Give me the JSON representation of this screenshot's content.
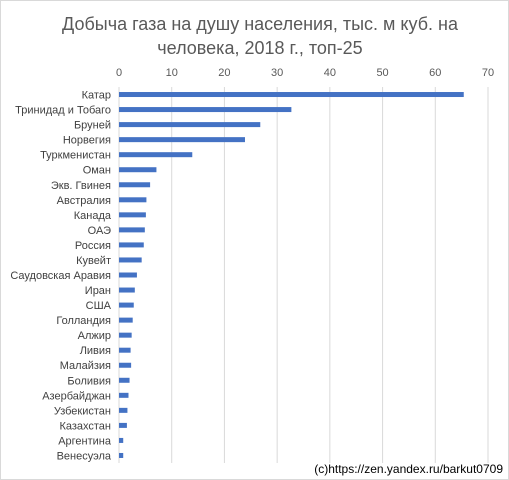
{
  "chart_data": {
    "type": "bar",
    "orientation": "horizontal",
    "title_line1": "Добыча газа на душу населения, тыс. м куб. на",
    "title_line2": "человека, 2018 г., топ-25",
    "xlim": [
      0,
      70
    ],
    "xticks": [
      0,
      10,
      20,
      30,
      40,
      50,
      60,
      70
    ],
    "grid": true,
    "bar_color": "#4472c4",
    "categories": [
      "Катар",
      "Тринидад и Тобаго",
      "Бруней",
      "Норвегия",
      "Туркменистан",
      "Оман",
      "Экв. Гвинея",
      "Австралия",
      "Канада",
      "ОАЭ",
      "Россия",
      "Кувейт",
      "Саудовская Аравия",
      "Иран",
      "США",
      "Голландия",
      "Алжир",
      "Ливия",
      "Малайзия",
      "Боливия",
      "Азербайджан",
      "Узбекистан",
      "Казахстан",
      "Аргентина",
      "Венесуэла"
    ],
    "values": [
      65.4,
      32.7,
      26.8,
      23.9,
      13.9,
      7.1,
      5.9,
      5.2,
      5.1,
      4.9,
      4.7,
      4.3,
      3.4,
      3.0,
      2.8,
      2.6,
      2.4,
      2.2,
      2.3,
      2.0,
      1.8,
      1.6,
      1.5,
      0.8,
      0.8
    ]
  },
  "credit": "(c)https://zen.yandex.ru/barkut0709"
}
